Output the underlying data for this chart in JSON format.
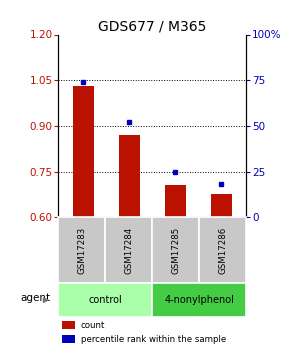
{
  "title": "GDS677 / M365",
  "samples": [
    "GSM17283",
    "GSM17284",
    "GSM17285",
    "GSM17286"
  ],
  "bar_values": [
    1.03,
    0.87,
    0.705,
    0.675
  ],
  "bar_baseline": 0.6,
  "percentile_values": [
    74,
    52,
    25,
    18
  ],
  "ylim_left": [
    0.6,
    1.2
  ],
  "ylim_right": [
    0,
    100
  ],
  "yticks_left": [
    0.6,
    0.75,
    0.9,
    1.05,
    1.2
  ],
  "yticks_right": [
    0,
    25,
    50,
    75,
    100
  ],
  "ytick_labels_right": [
    "0",
    "25",
    "50",
    "75",
    "100%"
  ],
  "bar_color": "#BB1100",
  "marker_color": "#0000BB",
  "groups": [
    {
      "label": "control",
      "indices": [
        0,
        1
      ],
      "color": "#AAFFAA"
    },
    {
      "label": "4-nonylphenol",
      "indices": [
        2,
        3
      ],
      "color": "#44CC44"
    }
  ],
  "sample_box_color": "#C8C8C8",
  "legend_items": [
    {
      "label": "count",
      "color": "#BB1100"
    },
    {
      "label": "percentile rank within the sample",
      "color": "#0000BB"
    }
  ],
  "dotted_yticks": [
    0.75,
    0.9,
    1.05
  ]
}
